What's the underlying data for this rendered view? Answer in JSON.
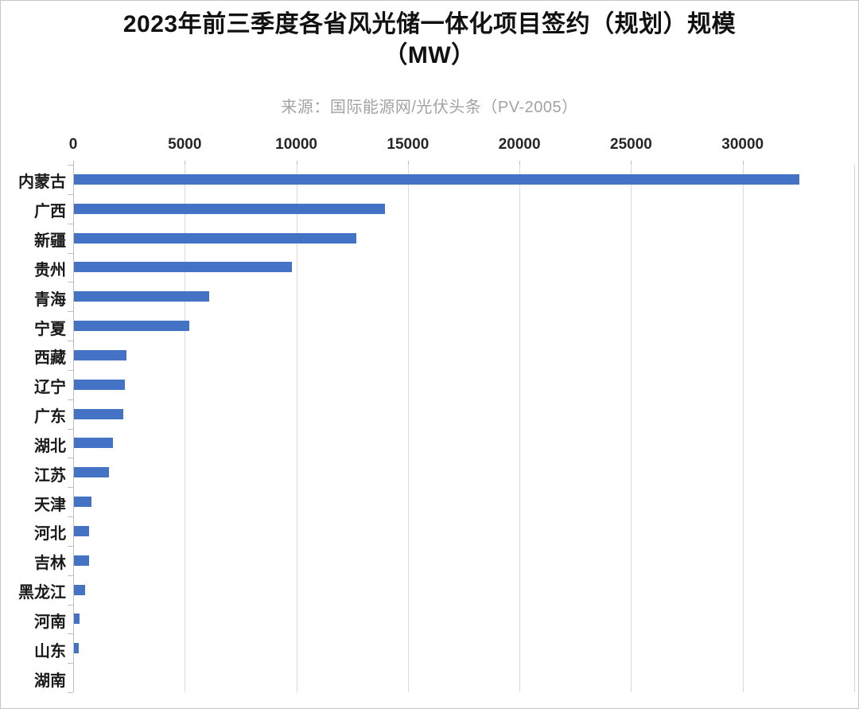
{
  "header": {
    "title_line1": "2023年前三季度各省风光储一体化项目签约（规划）规模",
    "title_line2": "（MW）",
    "source": "来源：国际能源网/光伏头条（PV-2005）"
  },
  "chart_data": {
    "type": "bar",
    "orientation": "horizontal",
    "title": "2023年前三季度各省风光储一体化项目签约（规划）规模（MW）",
    "subtitle_source": "来源：国际能源网/光伏头条（PV-2005）",
    "unit": "MW",
    "categories": [
      "内蒙古",
      "广西",
      "新疆",
      "贵州",
      "青海",
      "宁夏",
      "西藏",
      "辽宁",
      "广东",
      "湖北",
      "江苏",
      "天津",
      "河北",
      "吉林",
      "黑龙江",
      "河南",
      "山东",
      "湖南"
    ],
    "values": [
      32500,
      13950,
      12660,
      9770,
      6050,
      5170,
      2360,
      2280,
      2200,
      1760,
      1560,
      800,
      680,
      660,
      490,
      250,
      220,
      0
    ],
    "xlim": [
      0,
      35000
    ],
    "xticks": [
      0,
      5000,
      10000,
      15000,
      20000,
      25000,
      30000
    ],
    "axis_position": "top",
    "grid": true,
    "legend": "none",
    "bar_color": "#4472C4",
    "gridline_color": "#D9D9D9",
    "axis_color": "#BFBFBF",
    "tick_label_color": "#262626",
    "category_label_color": "#1A1A1A",
    "title_color": "#111111",
    "source_color": "#A2A2A2"
  }
}
